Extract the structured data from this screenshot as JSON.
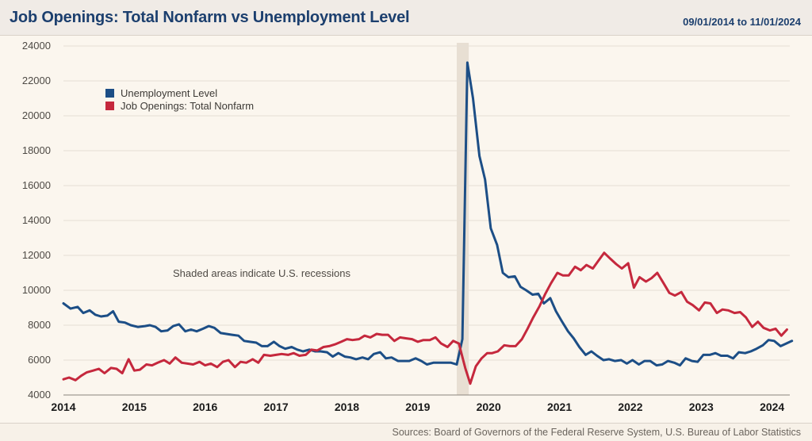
{
  "header": {
    "title": "Job Openings: Total Nonfarm vs Unemployment Level",
    "date_range": "09/01/2014 to 11/01/2024"
  },
  "footer": {
    "sources": "Sources: Board of Governors of the Federal Reserve System, U.S. Bureau of Labor Statistics"
  },
  "colors": {
    "unemployment": "#1c4e86",
    "job_openings": "#c5283d",
    "recession": "#e8dfd3"
  },
  "chart_data": {
    "type": "line",
    "title": "Job Openings: Total Nonfarm vs Unemployment Level",
    "xlabel": "",
    "ylabel": "",
    "ylim": [
      4000,
      24000
    ],
    "xlim": [
      2014,
      2024.25
    ],
    "yticks": [
      "4000",
      "6000",
      "8000",
      "10000",
      "12000",
      "14000",
      "16000",
      "18000",
      "20000",
      "22000",
      "24000"
    ],
    "xticks": [
      "2014",
      "2015",
      "2016",
      "2017",
      "2018",
      "2019",
      "2020",
      "2021",
      "2022",
      "2023",
      "2024"
    ],
    "grid": "horizontal",
    "legend_position": "top-left",
    "annotation": "Shaded areas indicate U.S. recessions",
    "recessions": [
      {
        "start": 2019.55,
        "end": 2019.72
      }
    ],
    "series": [
      {
        "name": "Unemployment Level",
        "color": "#1c4e86",
        "points": [
          [
            2014.0,
            9250
          ],
          [
            2014.1,
            8950
          ],
          [
            2014.2,
            9050
          ],
          [
            2014.28,
            8700
          ],
          [
            2014.37,
            8850
          ],
          [
            2014.45,
            8600
          ],
          [
            2014.53,
            8500
          ],
          [
            2014.62,
            8550
          ],
          [
            2014.7,
            8800
          ],
          [
            2014.78,
            8200
          ],
          [
            2014.87,
            8150
          ],
          [
            2014.95,
            8000
          ],
          [
            2015.05,
            7900
          ],
          [
            2015.15,
            7950
          ],
          [
            2015.22,
            8000
          ],
          [
            2015.3,
            7900
          ],
          [
            2015.38,
            7650
          ],
          [
            2015.47,
            7700
          ],
          [
            2015.55,
            7950
          ],
          [
            2015.63,
            8050
          ],
          [
            2015.72,
            7650
          ],
          [
            2015.8,
            7750
          ],
          [
            2015.88,
            7650
          ],
          [
            2015.97,
            7800
          ],
          [
            2016.05,
            7950
          ],
          [
            2016.13,
            7850
          ],
          [
            2016.22,
            7550
          ],
          [
            2016.3,
            7500
          ],
          [
            2016.38,
            7450
          ],
          [
            2016.47,
            7400
          ],
          [
            2016.55,
            7100
          ],
          [
            2016.63,
            7050
          ],
          [
            2016.72,
            7000
          ],
          [
            2016.8,
            6800
          ],
          [
            2016.88,
            6800
          ],
          [
            2016.97,
            7050
          ],
          [
            2017.05,
            6800
          ],
          [
            2017.13,
            6650
          ],
          [
            2017.22,
            6750
          ],
          [
            2017.3,
            6600
          ],
          [
            2017.38,
            6500
          ],
          [
            2017.47,
            6600
          ],
          [
            2017.55,
            6500
          ],
          [
            2017.63,
            6500
          ],
          [
            2017.72,
            6450
          ],
          [
            2017.8,
            6200
          ],
          [
            2017.88,
            6400
          ],
          [
            2017.97,
            6200
          ],
          [
            2018.05,
            6150
          ],
          [
            2018.13,
            6050
          ],
          [
            2018.22,
            6150
          ],
          [
            2018.3,
            6050
          ],
          [
            2018.38,
            6350
          ],
          [
            2018.47,
            6450
          ],
          [
            2018.55,
            6100
          ],
          [
            2018.63,
            6150
          ],
          [
            2018.72,
            5950
          ],
          [
            2018.8,
            5950
          ],
          [
            2018.88,
            5950
          ],
          [
            2018.97,
            6100
          ],
          [
            2019.05,
            5950
          ],
          [
            2019.13,
            5750
          ],
          [
            2019.22,
            5850
          ],
          [
            2019.3,
            5850
          ],
          [
            2019.38,
            5850
          ],
          [
            2019.47,
            5850
          ],
          [
            2019.55,
            5750
          ],
          [
            2019.63,
            7200
          ],
          [
            2019.7,
            23050
          ],
          [
            2019.78,
            21000
          ],
          [
            2019.87,
            17700
          ],
          [
            2019.95,
            16350
          ],
          [
            2020.03,
            13550
          ],
          [
            2020.12,
            12600
          ],
          [
            2020.2,
            11000
          ],
          [
            2020.28,
            10750
          ],
          [
            2020.37,
            10800
          ],
          [
            2020.45,
            10200
          ],
          [
            2020.53,
            10000
          ],
          [
            2020.62,
            9750
          ],
          [
            2020.7,
            9800
          ],
          [
            2020.78,
            9250
          ],
          [
            2020.87,
            9550
          ],
          [
            2020.95,
            8800
          ],
          [
            2021.03,
            8250
          ],
          [
            2021.12,
            7650
          ],
          [
            2021.2,
            7250
          ],
          [
            2021.28,
            6750
          ],
          [
            2021.37,
            6300
          ],
          [
            2021.45,
            6500
          ],
          [
            2021.53,
            6250
          ],
          [
            2021.62,
            6000
          ],
          [
            2021.7,
            6050
          ],
          [
            2021.78,
            5950
          ],
          [
            2021.87,
            6000
          ],
          [
            2021.95,
            5800
          ],
          [
            2022.03,
            6000
          ],
          [
            2022.12,
            5750
          ],
          [
            2022.2,
            5950
          ],
          [
            2022.28,
            5950
          ],
          [
            2022.37,
            5700
          ],
          [
            2022.45,
            5750
          ],
          [
            2022.53,
            5950
          ],
          [
            2022.62,
            5850
          ],
          [
            2022.7,
            5700
          ],
          [
            2022.78,
            6100
          ],
          [
            2022.87,
            5950
          ],
          [
            2022.95,
            5900
          ],
          [
            2023.03,
            6300
          ],
          [
            2023.12,
            6300
          ],
          [
            2023.2,
            6400
          ],
          [
            2023.28,
            6250
          ],
          [
            2023.37,
            6250
          ],
          [
            2023.45,
            6100
          ],
          [
            2023.53,
            6450
          ],
          [
            2023.62,
            6400
          ],
          [
            2023.7,
            6500
          ],
          [
            2023.78,
            6650
          ],
          [
            2023.87,
            6850
          ],
          [
            2023.95,
            7150
          ],
          [
            2024.03,
            7100
          ],
          [
            2024.12,
            6800
          ],
          [
            2024.2,
            6950
          ],
          [
            2024.28,
            7100
          ]
        ]
      },
      {
        "name": "Job Openings: Total Nonfarm",
        "color": "#c5283d",
        "points": [
          [
            2014.0,
            4900
          ],
          [
            2014.08,
            5000
          ],
          [
            2014.17,
            4850
          ],
          [
            2014.25,
            5100
          ],
          [
            2014.33,
            5300
          ],
          [
            2014.42,
            5400
          ],
          [
            2014.5,
            5500
          ],
          [
            2014.58,
            5250
          ],
          [
            2014.67,
            5550
          ],
          [
            2014.75,
            5500
          ],
          [
            2014.83,
            5250
          ],
          [
            2014.92,
            6050
          ],
          [
            2015.0,
            5400
          ],
          [
            2015.08,
            5450
          ],
          [
            2015.17,
            5750
          ],
          [
            2015.25,
            5700
          ],
          [
            2015.33,
            5850
          ],
          [
            2015.42,
            6000
          ],
          [
            2015.5,
            5800
          ],
          [
            2015.58,
            6150
          ],
          [
            2015.67,
            5850
          ],
          [
            2015.75,
            5800
          ],
          [
            2015.83,
            5750
          ],
          [
            2015.92,
            5900
          ],
          [
            2016.0,
            5700
          ],
          [
            2016.08,
            5800
          ],
          [
            2016.17,
            5600
          ],
          [
            2016.25,
            5900
          ],
          [
            2016.33,
            6000
          ],
          [
            2016.42,
            5600
          ],
          [
            2016.5,
            5900
          ],
          [
            2016.58,
            5850
          ],
          [
            2016.67,
            6050
          ],
          [
            2016.75,
            5850
          ],
          [
            2016.83,
            6300
          ],
          [
            2016.92,
            6250
          ],
          [
            2017.0,
            6300
          ],
          [
            2017.08,
            6350
          ],
          [
            2017.17,
            6300
          ],
          [
            2017.25,
            6400
          ],
          [
            2017.33,
            6250
          ],
          [
            2017.42,
            6300
          ],
          [
            2017.5,
            6600
          ],
          [
            2017.58,
            6550
          ],
          [
            2017.67,
            6750
          ],
          [
            2017.75,
            6800
          ],
          [
            2017.83,
            6900
          ],
          [
            2017.92,
            7050
          ],
          [
            2018.0,
            7200
          ],
          [
            2018.08,
            7150
          ],
          [
            2018.17,
            7200
          ],
          [
            2018.25,
            7400
          ],
          [
            2018.33,
            7300
          ],
          [
            2018.42,
            7500
          ],
          [
            2018.5,
            7450
          ],
          [
            2018.58,
            7450
          ],
          [
            2018.67,
            7100
          ],
          [
            2018.75,
            7300
          ],
          [
            2018.83,
            7250
          ],
          [
            2018.92,
            7200
          ],
          [
            2019.0,
            7050
          ],
          [
            2019.08,
            7150
          ],
          [
            2019.17,
            7150
          ],
          [
            2019.25,
            7300
          ],
          [
            2019.33,
            6950
          ],
          [
            2019.42,
            6750
          ],
          [
            2019.5,
            7100
          ],
          [
            2019.58,
            6950
          ],
          [
            2019.67,
            5550
          ],
          [
            2019.74,
            4650
          ],
          [
            2019.82,
            5650
          ],
          [
            2019.9,
            6100
          ],
          [
            2019.98,
            6400
          ],
          [
            2020.05,
            6400
          ],
          [
            2020.13,
            6500
          ],
          [
            2020.22,
            6850
          ],
          [
            2020.3,
            6800
          ],
          [
            2020.38,
            6800
          ],
          [
            2020.47,
            7200
          ],
          [
            2020.55,
            7800
          ],
          [
            2020.63,
            8450
          ],
          [
            2020.72,
            9100
          ],
          [
            2020.8,
            9800
          ],
          [
            2020.88,
            10400
          ],
          [
            2020.97,
            11000
          ],
          [
            2021.05,
            10850
          ],
          [
            2021.13,
            10850
          ],
          [
            2021.22,
            11350
          ],
          [
            2021.3,
            11150
          ],
          [
            2021.38,
            11450
          ],
          [
            2021.47,
            11250
          ],
          [
            2021.55,
            11700
          ],
          [
            2021.63,
            12150
          ],
          [
            2021.72,
            11800
          ],
          [
            2021.8,
            11500
          ],
          [
            2021.88,
            11250
          ],
          [
            2021.97,
            11550
          ],
          [
            2022.05,
            10150
          ],
          [
            2022.13,
            10750
          ],
          [
            2022.22,
            10500
          ],
          [
            2022.3,
            10700
          ],
          [
            2022.38,
            11000
          ],
          [
            2022.47,
            10400
          ],
          [
            2022.55,
            9850
          ],
          [
            2022.63,
            9700
          ],
          [
            2022.72,
            9900
          ],
          [
            2022.8,
            9350
          ],
          [
            2022.88,
            9150
          ],
          [
            2022.97,
            8850
          ],
          [
            2023.05,
            9300
          ],
          [
            2023.13,
            9250
          ],
          [
            2023.22,
            8700
          ],
          [
            2023.3,
            8900
          ],
          [
            2023.38,
            8850
          ],
          [
            2023.47,
            8700
          ],
          [
            2023.55,
            8750
          ],
          [
            2023.63,
            8450
          ],
          [
            2023.72,
            7900
          ],
          [
            2023.8,
            8200
          ],
          [
            2023.88,
            7850
          ],
          [
            2023.97,
            7700
          ],
          [
            2024.05,
            7800
          ],
          [
            2024.13,
            7400
          ],
          [
            2024.21,
            7750
          ]
        ]
      }
    ]
  }
}
